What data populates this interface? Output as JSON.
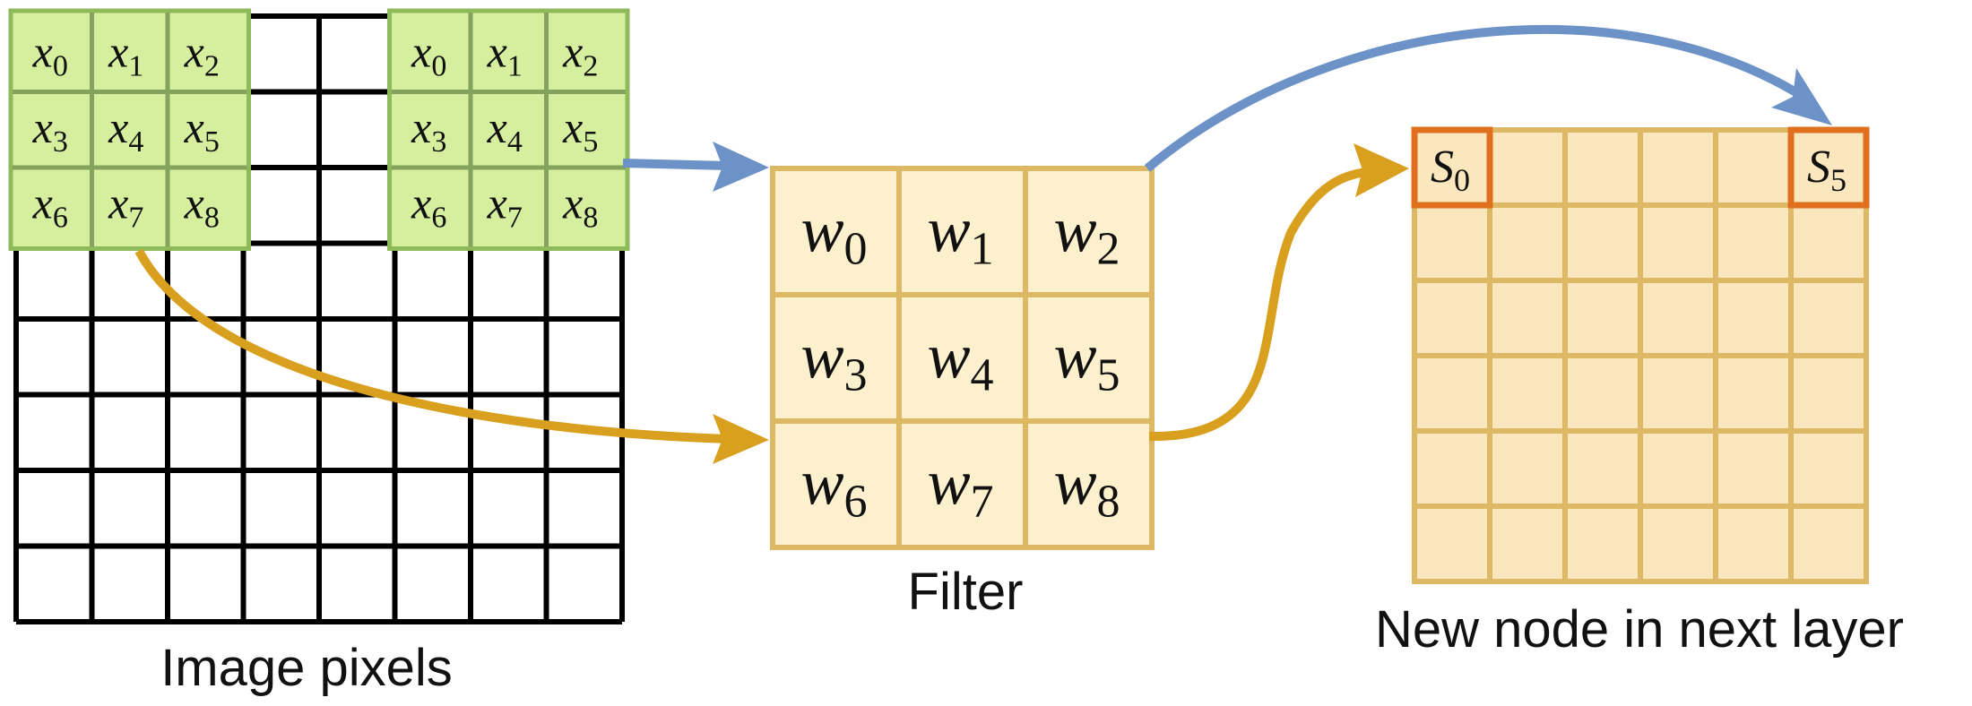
{
  "labels": {
    "image": "Image pixels",
    "filter": "Filter",
    "output": "New node in next layer"
  },
  "image_grid": {
    "rows": 8,
    "cols": 8,
    "patches": [
      {
        "cells": [
          "x",
          "x",
          "x",
          "x",
          "x",
          "x",
          "x",
          "x",
          "x"
        ],
        "subs": [
          "0",
          "1",
          "2",
          "3",
          "4",
          "5",
          "6",
          "7",
          "8"
        ]
      },
      {
        "cells": [
          "x",
          "x",
          "x",
          "x",
          "x",
          "x",
          "x",
          "x",
          "x"
        ],
        "subs": [
          "0",
          "1",
          "2",
          "3",
          "4",
          "5",
          "6",
          "7",
          "8"
        ]
      }
    ]
  },
  "filter": {
    "symbol": "w",
    "subs": [
      "0",
      "1",
      "2",
      "3",
      "4",
      "5",
      "6",
      "7",
      "8"
    ]
  },
  "output_grid": {
    "rows": 6,
    "cols": 6,
    "highlighted": [
      {
        "symbol": "S",
        "sub": "0"
      },
      {
        "symbol": "S",
        "sub": "5"
      }
    ]
  },
  "colors": {
    "grid_line": "#000000",
    "patch_fill": "#d6ef9e",
    "patch_border": "#8fba5a",
    "patch_line": "#84a35c",
    "filter_fill": "#fdf0cc",
    "filter_line": "#ddb865",
    "output_fill": "#fbe7bd",
    "output_line": "#ddb865",
    "highlight_border": "#e0701d",
    "arrow_blue": "#6c92c8",
    "arrow_gold": "#d9a020"
  }
}
